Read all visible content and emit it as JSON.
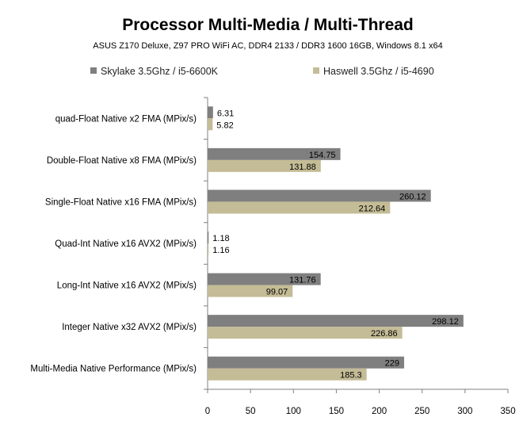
{
  "chart_data": {
    "type": "bar",
    "orientation": "horizontal",
    "title": "Processor Multi-Media / Multi-Thread",
    "subtitle": "ASUS Z170 Deluxe, Z97 PRO WiFi AC,  DDR4 2133  / DDR3 1600 16GB, Windows 8.1 x64",
    "categories": [
      "quad-Float Native x2 FMA (MPix/s)",
      "Double-Float Native x8 FMA (MPix/s)",
      "Single-Float Native x16 FMA (MPix/s)",
      "Quad-Int Native x16 AVX2 (MPix/s)",
      "Long-Int Native x16 AVX2 (MPix/s)",
      "Integer Native x32 AVX2 (MPix/s)",
      "Multi-Media Native Performance (MPix/s)"
    ],
    "series": [
      {
        "name": "Skylake 3.5Ghz / i5-6600K",
        "color": "#7f7f7f",
        "values": [
          6.31,
          154.75,
          260.12,
          1.18,
          131.76,
          298.12,
          229
        ],
        "labels": [
          "6.31",
          "154.75",
          "260.12",
          "1.18",
          "131.76",
          "298.12",
          "229"
        ]
      },
      {
        "name": "Haswell 3.5Ghz / i5-4690",
        "color": "#c4bc96",
        "values": [
          5.82,
          131.88,
          212.64,
          1.16,
          99.07,
          226.86,
          185.3
        ],
        "labels": [
          "5.82",
          "131.88",
          "212.64",
          "1.16",
          "99.07",
          "226.86",
          "185.3"
        ]
      }
    ],
    "xlim": [
      0,
      350
    ],
    "xticks": [
      "0",
      "50",
      "100",
      "150",
      "200",
      "250",
      "300",
      "350"
    ],
    "grid": false,
    "legend_position": "top"
  }
}
